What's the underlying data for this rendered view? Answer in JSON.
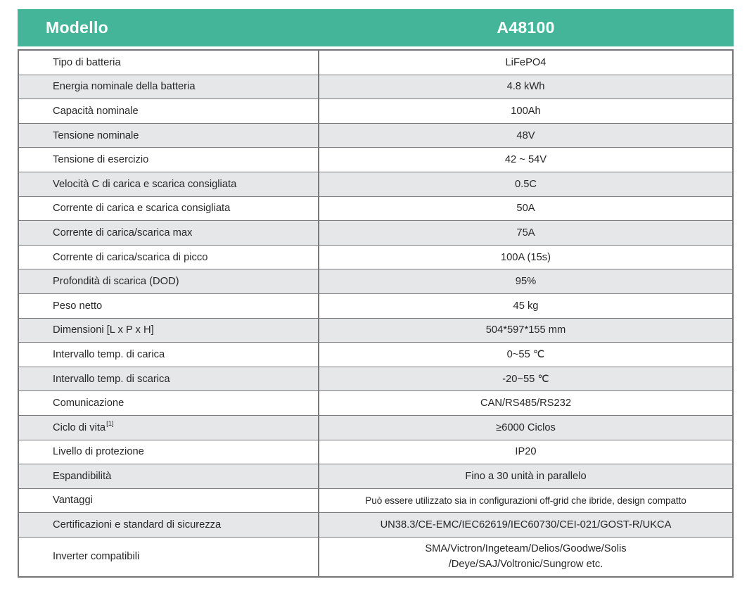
{
  "header": {
    "model_label": "Modello",
    "model_value": "A48100"
  },
  "colors": {
    "header_bg": "#45B59A",
    "header_text": "#FFFFFF",
    "alt_row_bg": "#E6E7E8",
    "border": "#7B7B7D"
  },
  "table": {
    "rows": [
      {
        "label": "Tipo di batteria",
        "value": "LiFePO4"
      },
      {
        "label": "Energia nominale della batteria",
        "value": "4.8 kWh"
      },
      {
        "label": "Capacità nominale",
        "value": "100Ah"
      },
      {
        "label": "Tensione nominale",
        "value": "48V"
      },
      {
        "label": "Tensione di esercizio",
        "value": "42 ~ 54V"
      },
      {
        "label": "Velocità C di carica e scarica consigliata",
        "value": "0.5C"
      },
      {
        "label": "Corrente di carica e scarica consigliata",
        "value": "50A"
      },
      {
        "label": "Corrente di carica/scarica max",
        "value": "75A"
      },
      {
        "label": "Corrente di carica/scarica di picco",
        "value": "100A (15s)"
      },
      {
        "label": "Profondità di scarica (DOD)",
        "value": "95%"
      },
      {
        "label": "Peso netto",
        "value": "45 kg"
      },
      {
        "label": "Dimensioni [L x P x H]",
        "value": "504*597*155 mm"
      },
      {
        "label": "Intervallo temp. di carica",
        "value": "0~55 ℃"
      },
      {
        "label": "Intervallo temp. di scarica",
        "value": "-20~55 ℃"
      },
      {
        "label": "Comunicazione",
        "value": "CAN/RS485/RS232"
      },
      {
        "label": "Ciclo di vita",
        "label_sup": "[1]",
        "value": "≥6000 Ciclos"
      },
      {
        "label": "Livello di protezione",
        "value": "IP20"
      },
      {
        "label": "Espandibilità",
        "value": "Fino a 30 unità in parallelo"
      },
      {
        "label": "Vantaggi",
        "value": "Può essere utilizzato sia in configurazioni off-grid che ibride, design compatto",
        "small": true
      },
      {
        "label": "Certificazioni e standard di sicurezza",
        "value": "UN38.3/CE-EMC/IEC62619/IEC60730/CEI-021/GOST-R/UKCA"
      },
      {
        "label": "Inverter compatibili",
        "value_lines": [
          "SMA/Victron/Ingeteam/Delios/Goodwe/Solis",
          "/Deye/SAJ/Voltronic/Sungrow etc."
        ],
        "tall": true
      }
    ]
  }
}
